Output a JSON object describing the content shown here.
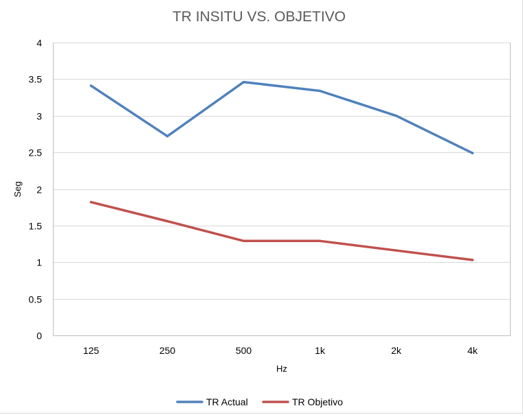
{
  "chart_data": {
    "type": "line",
    "title": "TR INSITU VS. OBJETIVO",
    "xlabel": "Hz",
    "ylabel": "Seg",
    "categories": [
      "125",
      "250",
      "500",
      "1k",
      "2k",
      "4k"
    ],
    "ylim": [
      0,
      4
    ],
    "yticks": [
      "0",
      "0.5",
      "1",
      "1.5",
      "2",
      "2.5",
      "3",
      "3.5",
      "4"
    ],
    "grid": true,
    "legend_position": "bottom",
    "series": [
      {
        "name": "TR Actual",
        "color": "#4f81bd",
        "values": [
          3.41,
          2.72,
          3.46,
          3.34,
          3.0,
          2.49
        ]
      },
      {
        "name": "TR Objetivo",
        "color": "#c0504d",
        "values": [
          1.82,
          1.56,
          1.29,
          1.29,
          1.16,
          1.03
        ]
      }
    ]
  }
}
